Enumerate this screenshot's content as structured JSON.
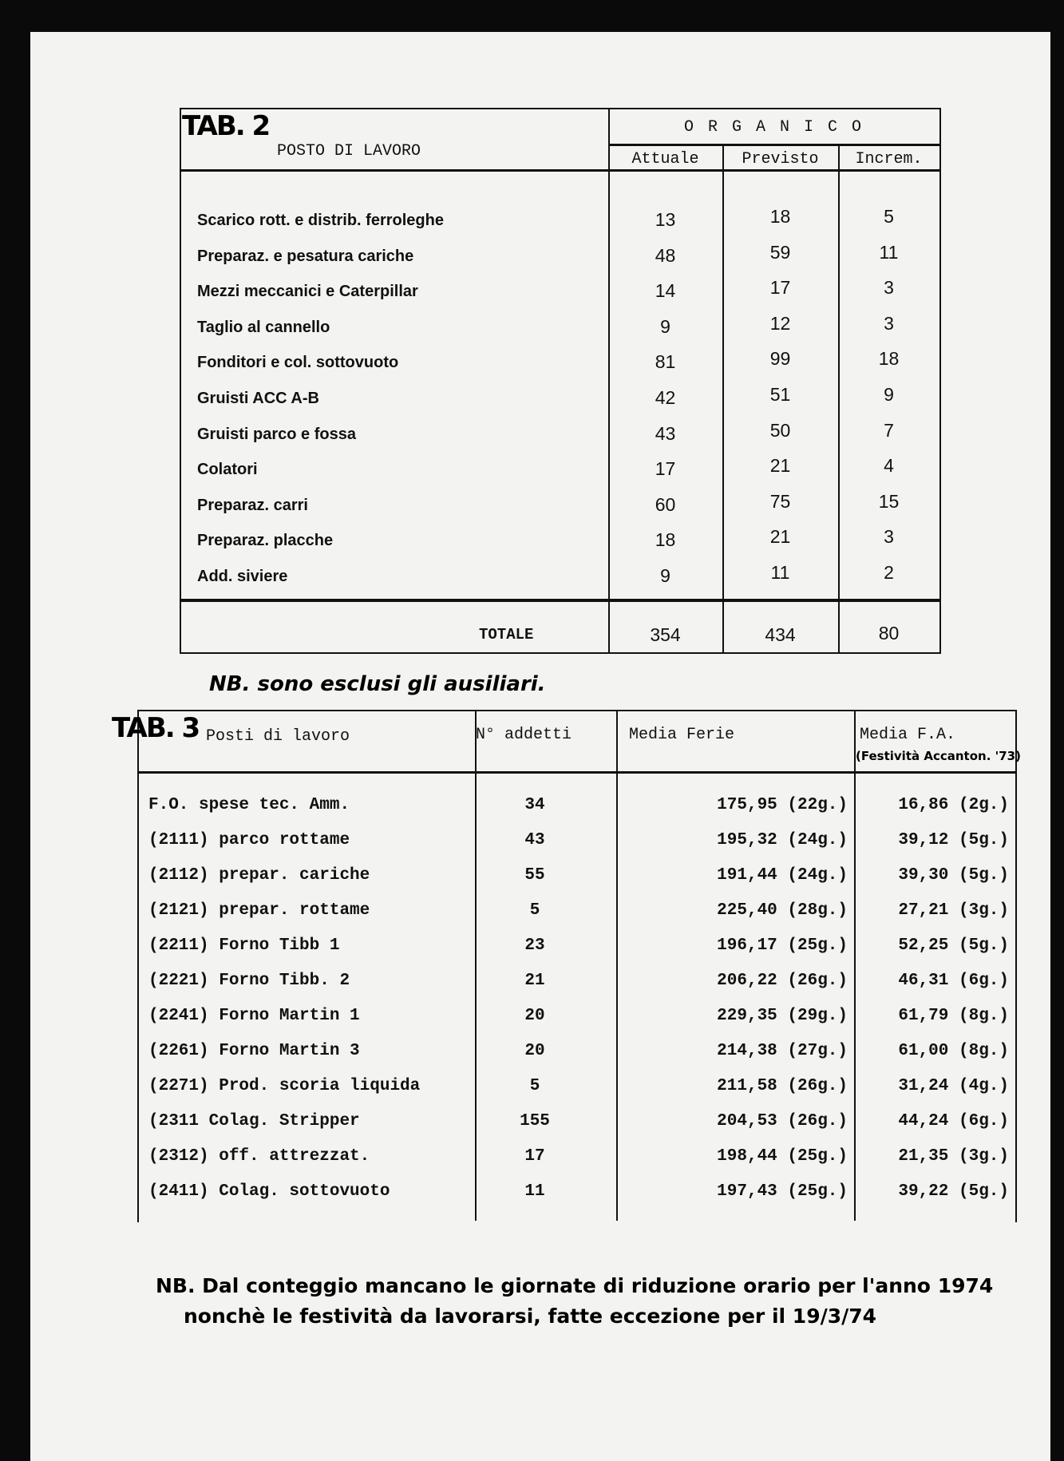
{
  "tab2": {
    "label": "TAB. 2",
    "col_posto": "POSTO DI LAVORO",
    "group_header": "O R G A N I C O",
    "col_attuale": "Attuale",
    "col_previsto": "Previsto",
    "col_increm": "Increm.",
    "rows": [
      {
        "posto": "Scarico rott. e distrib. ferroleghe",
        "attuale": "13",
        "previsto": "18",
        "increm": "5"
      },
      {
        "posto": "Preparaz. e pesatura cariche",
        "attuale": "48",
        "previsto": "59",
        "increm": "11"
      },
      {
        "posto": "Mezzi meccanici e Caterpillar",
        "attuale": "14",
        "previsto": "17",
        "increm": "3"
      },
      {
        "posto": "Taglio al cannello",
        "attuale": "9",
        "previsto": "12",
        "increm": "3"
      },
      {
        "posto": "Fonditori e col. sottovuoto",
        "attuale": "81",
        "previsto": "99",
        "increm": "18"
      },
      {
        "posto": "Gruisti ACC  A-B",
        "attuale": "42",
        "previsto": "51",
        "increm": "9"
      },
      {
        "posto": "Gruisti parco e fossa",
        "attuale": "43",
        "previsto": "50",
        "increm": "7"
      },
      {
        "posto": "Colatori",
        "attuale": "17",
        "previsto": "21",
        "increm": "4"
      },
      {
        "posto": "Preparaz. carri",
        "attuale": "60",
        "previsto": "75",
        "increm": "15"
      },
      {
        "posto": "Preparaz. placche",
        "attuale": "18",
        "previsto": "21",
        "increm": "3"
      },
      {
        "posto": "Add. siviere",
        "attuale": "9",
        "previsto": "11",
        "increm": "2"
      }
    ],
    "totale_label": "TOTALE",
    "totale_attuale": "354",
    "totale_previsto": "434",
    "totale_increm": "80",
    "note": "NB. sono esclusi gli ausiliari."
  },
  "tab3": {
    "label": "TAB. 3",
    "col_posti": "Posti di lavoro",
    "col_addetti": "N° addetti",
    "col_ferie": "Media Ferie",
    "col_fa": "Media F.A.",
    "col_fa_note": "(Festività Accanton. '73)",
    "rows": [
      {
        "posto": "F.O. spese tec. Amm.",
        "addetti": "34",
        "ferie": "175,95 (22g.)",
        "fa": "16,86 (2g.)"
      },
      {
        "posto": "(2111) parco rottame",
        "addetti": "43",
        "ferie": "195,32 (24g.)",
        "fa": "39,12 (5g.)"
      },
      {
        "posto": "(2112) prepar. cariche",
        "addetti": "55",
        "ferie": "191,44 (24g.)",
        "fa": "39,30 (5g.)"
      },
      {
        "posto": "(2121) prepar. rottame",
        "addetti": "5",
        "ferie": "225,40 (28g.)",
        "fa": "27,21 (3g.)"
      },
      {
        "posto": "(2211) Forno Tibb 1",
        "addetti": "23",
        "ferie": "196,17 (25g.)",
        "fa": "52,25 (5g.)"
      },
      {
        "posto": "(2221) Forno Tibb. 2",
        "addetti": "21",
        "ferie": "206,22 (26g.)",
        "fa": "46,31 (6g.)"
      },
      {
        "posto": "(2241) Forno Martin 1",
        "addetti": "20",
        "ferie": "229,35 (29g.)",
        "fa": "61,79 (8g.)"
      },
      {
        "posto": "(2261) Forno Martin 3",
        "addetti": "20",
        "ferie": "214,38 (27g.)",
        "fa": "61,00 (8g.)"
      },
      {
        "posto": "(2271) Prod. scoria liquida",
        "addetti": "5",
        "ferie": "211,58 (26g.)",
        "fa": "31,24 (4g.)"
      },
      {
        "posto": "(2311 Colag. Stripper",
        "addetti": "155",
        "ferie": "204,53 (26g.)",
        "fa": "44,24 (6g.)"
      },
      {
        "posto": "(2312) off. attrezzat.",
        "addetti": "17",
        "ferie": "198,44 (25g.)",
        "fa": "21,35 (3g.)"
      },
      {
        "posto": "(2411) Colag. sottovuoto",
        "addetti": "11",
        "ferie": "197,43 (25g.)",
        "fa": "39,22 (5g.)"
      }
    ],
    "note_line1": "NB. Dal conteggio mancano le giornate di riduzione orario per l'anno 1974",
    "note_line2": "nonchè le festività da lavorarsi, fatte eccezione per il 19/3/74"
  }
}
